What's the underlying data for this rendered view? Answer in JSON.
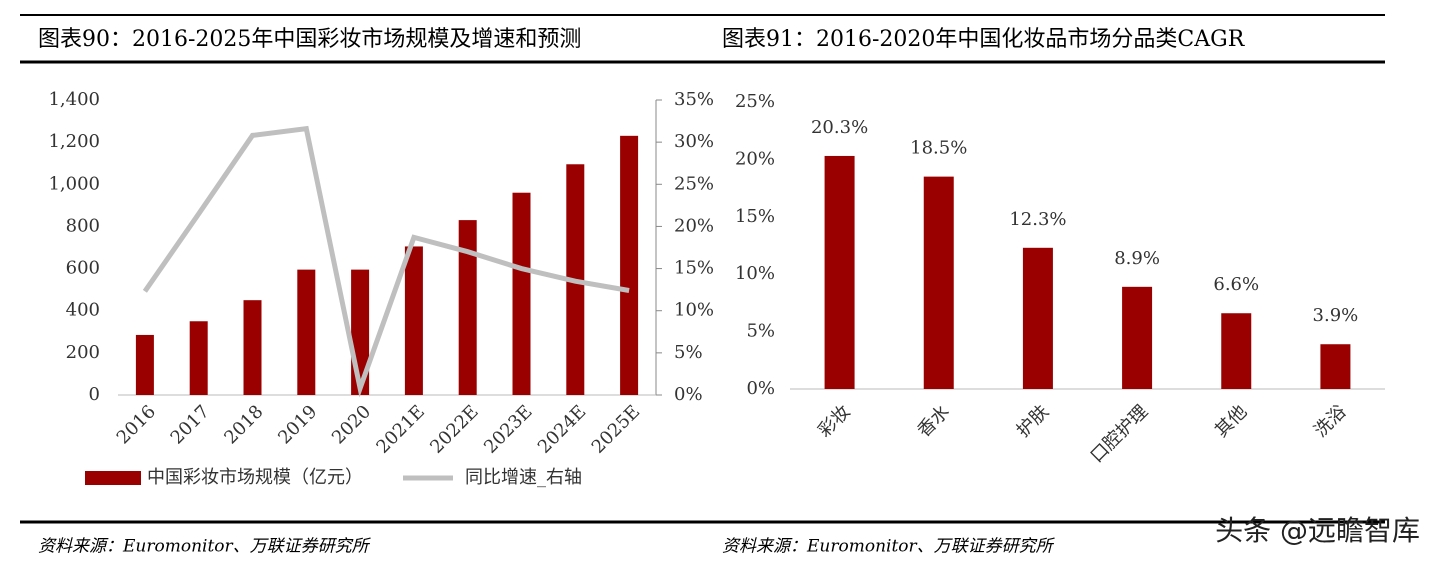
{
  "chart_data": [
    {
      "type": "bar_line",
      "title": "图表90：2016-2025年中国彩妆市场规模及增速和预测",
      "categories": [
        "2016",
        "2017",
        "2018",
        "2019",
        "2020",
        "2021E",
        "2022E",
        "2023E",
        "2024E",
        "2025E"
      ],
      "series": [
        {
          "name": "中国彩妆市场规模（亿元）",
          "type": "bar",
          "color": "#9b0000",
          "values": [
            285,
            350,
            450,
            595,
            595,
            705,
            830,
            960,
            1095,
            1230
          ]
        },
        {
          "name": "同比增速_右轴",
          "type": "line",
          "axis": "y2",
          "color": "#bfbfbf",
          "values": [
            12.3,
            21.5,
            30.8,
            31.6,
            0.8,
            18.7,
            17,
            15,
            13.5,
            12.4
          ]
        }
      ],
      "ylim": [
        0,
        1400
      ],
      "yticks": [
        0,
        200,
        400,
        600,
        800,
        {
          "value": 1000,
          "label": "1,000"
        },
        {
          "value": 1200,
          "label": "1,200"
        },
        {
          "value": 1400,
          "label": "1,400"
        }
      ],
      "y2lim": [
        0,
        35
      ],
      "y2ticks": [
        {
          "value": 0,
          "label": "0%"
        },
        {
          "value": 5,
          "label": "5%"
        },
        {
          "value": 10,
          "label": "10%"
        },
        {
          "value": 15,
          "label": "15%"
        },
        {
          "value": 20,
          "label": "20%"
        },
        {
          "value": 25,
          "label": "25%"
        },
        {
          "value": 30,
          "label": "30%"
        },
        {
          "value": 35,
          "label": "35%"
        }
      ],
      "source": "资料来源：Euromonitor、万联证券研究所"
    },
    {
      "type": "bar",
      "title": "图表91：2016-2020年中国化妆品市场分品类CAGR",
      "categories": [
        "彩妆",
        "香水",
        "护肤",
        "口腔护理",
        "其他",
        "洗浴"
      ],
      "values": [
        20.3,
        18.5,
        12.3,
        8.9,
        6.6,
        3.9
      ],
      "value_labels": [
        "20.3%",
        "18.5%",
        "12.3%",
        "8.9%",
        "6.6%",
        "3.9%"
      ],
      "color": "#9b0000",
      "ylim": [
        0,
        25
      ],
      "yticks": [
        {
          "value": 0,
          "label": "0%"
        },
        {
          "value": 5,
          "label": "5%"
        },
        {
          "value": 10,
          "label": "10%"
        },
        {
          "value": 15,
          "label": "15%"
        },
        {
          "value": 20,
          "label": "20%"
        },
        {
          "value": 25,
          "label": "25%"
        }
      ],
      "source": "资料来源：Euromonitor、万联证券研究所"
    }
  ],
  "watermark": "头条 @远瞻智库"
}
